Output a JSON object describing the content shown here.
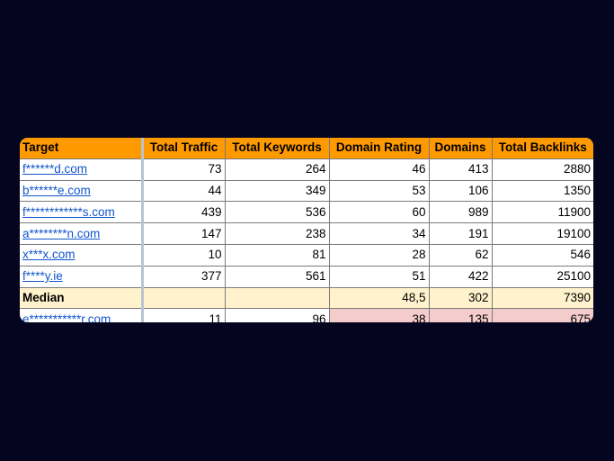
{
  "table": {
    "headers": [
      "Target",
      "Total Traffic",
      "Total Keywords",
      "Domain Rating",
      "Domains",
      "Total Backlinks"
    ],
    "rows": [
      [
        "f******d.com",
        "73",
        "264",
        "46",
        "413",
        "2880"
      ],
      [
        "b******e.com",
        "44",
        "349",
        "53",
        "106",
        "1350"
      ],
      [
        "f************s.com",
        "439",
        "536",
        "60",
        "989",
        "11900"
      ],
      [
        "a********n.com",
        "147",
        "238",
        "34",
        "191",
        "19100"
      ],
      [
        "x***x.com",
        "10",
        "81",
        "28",
        "62",
        "546"
      ],
      [
        "f****y.ie",
        "377",
        "561",
        "51",
        "422",
        "25100"
      ]
    ],
    "median": [
      "Median",
      "",
      "",
      "48,5",
      "302",
      "7390"
    ],
    "highlight": [
      "e***********r.com",
      "11",
      "96",
      "38",
      "135",
      "675"
    ]
  },
  "colors": {
    "background": "#05051f",
    "header": "#ff9900",
    "median_row": "#fff2cc",
    "highlight_cells": "#f4cccc",
    "link": "#1155cc"
  }
}
